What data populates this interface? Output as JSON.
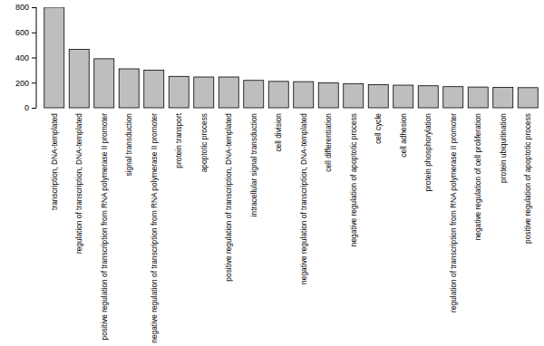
{
  "chart_data": {
    "type": "bar",
    "categories": [
      "transcription, DNA-templated",
      "regulation of transcription, DNA-templated",
      "positive regulation of transcription from RNA polymerase II promoter",
      "signal transduction",
      "negative regulation of transcription from RNA polymerase II promoter",
      "protein transport",
      "apoptotic process",
      "positive regulation of transcription, DNA-templated",
      "intracellular signal transduction",
      "cell division",
      "negative regulation of transcription, DNA-templated",
      "cell differentiation",
      "negative regulation of apoptotic process",
      "cell cycle",
      "cell adhesion",
      "protein phosphorylation",
      "regulation of transcription from RNA polymerase II promoter",
      "negative regulation of cell proliferation",
      "protein ubiquitination",
      "positive regulation of apoptotic process"
    ],
    "values": [
      800,
      465,
      390,
      310,
      300,
      250,
      245,
      245,
      218,
      210,
      208,
      198,
      192,
      184,
      180,
      175,
      168,
      165,
      163,
      160
    ],
    "color": "#bebebe",
    "ylim": [
      0,
      800
    ],
    "yticks": [
      0,
      200,
      400,
      600,
      800
    ]
  }
}
